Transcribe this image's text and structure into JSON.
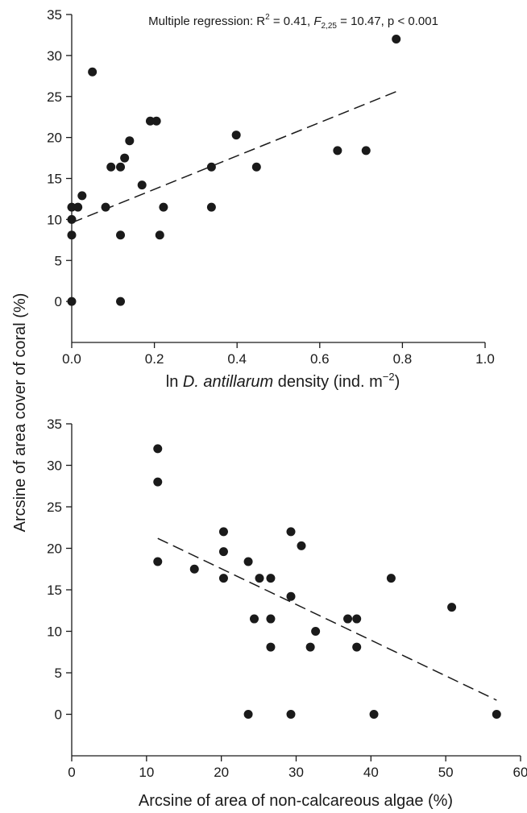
{
  "ylabel_shared": "Arcsine of area cover of coral (%)",
  "chart_data": [
    {
      "type": "scatter",
      "xlabel": {
        "prefix": "ln ",
        "italic": "D. antillarum",
        "suffix": " density (ind. m",
        "sup": "−2",
        "end": ")"
      },
      "ylabel": "Arcsine of area cover of coral (%)",
      "annotation": {
        "a": "Multiple regression: R",
        "sup": "2",
        "b": " = 0.41, ",
        "F": "F",
        "sub": "2,25",
        "c": " = 10.47, p < 0.001"
      },
      "xlim": [
        0,
        1.0
      ],
      "ylim": [
        -5,
        35
      ],
      "xticks": [
        "0.0",
        "0.2",
        "0.4",
        "0.6",
        "0.8",
        "1.0"
      ],
      "yticks": [
        "0",
        "5",
        "10",
        "15",
        "20",
        "25",
        "30",
        "35"
      ],
      "points": [
        {
          "x": 0.0,
          "y": 0.0
        },
        {
          "x": 0.0,
          "y": 8.1
        },
        {
          "x": 0.0,
          "y": 10.0
        },
        {
          "x": 0.0,
          "y": 11.5
        },
        {
          "x": 0.015,
          "y": 11.5
        },
        {
          "x": 0.025,
          "y": 12.9
        },
        {
          "x": 0.05,
          "y": 28.0
        },
        {
          "x": 0.082,
          "y": 11.5
        },
        {
          "x": 0.095,
          "y": 16.4
        },
        {
          "x": 0.118,
          "y": 16.4
        },
        {
          "x": 0.118,
          "y": 8.1
        },
        {
          "x": 0.118,
          "y": 0.0
        },
        {
          "x": 0.128,
          "y": 17.5
        },
        {
          "x": 0.14,
          "y": 19.6
        },
        {
          "x": 0.17,
          "y": 14.2
        },
        {
          "x": 0.19,
          "y": 22.0
        },
        {
          "x": 0.205,
          "y": 22.0
        },
        {
          "x": 0.213,
          "y": 8.1
        },
        {
          "x": 0.222,
          "y": 11.5
        },
        {
          "x": 0.338,
          "y": 16.4
        },
        {
          "x": 0.338,
          "y": 11.5
        },
        {
          "x": 0.398,
          "y": 20.3
        },
        {
          "x": 0.447,
          "y": 16.4
        },
        {
          "x": 0.643,
          "y": 18.4
        },
        {
          "x": 0.712,
          "y": 18.4
        },
        {
          "x": 0.785,
          "y": 32.0
        }
      ],
      "fit_line": {
        "x": [
          0.0,
          0.785
        ],
        "y": [
          9.6,
          25.6
        ]
      }
    },
    {
      "type": "scatter",
      "xlabel": "Arcsine of area of non-calcareous algae (%)",
      "ylabel": "Arcsine of area cover of coral (%)",
      "xlim": [
        0,
        60
      ],
      "ylim": [
        -5,
        35
      ],
      "xticks": [
        "0",
        "10",
        "20",
        "30",
        "40",
        "50",
        "60"
      ],
      "yticks": [
        "0",
        "5",
        "10",
        "15",
        "20",
        "25",
        "30",
        "35"
      ],
      "points": [
        {
          "x": 11.5,
          "y": 32.0
        },
        {
          "x": 11.5,
          "y": 28.0
        },
        {
          "x": 11.5,
          "y": 18.4
        },
        {
          "x": 16.4,
          "y": 17.5
        },
        {
          "x": 20.3,
          "y": 22.0
        },
        {
          "x": 20.3,
          "y": 19.6
        },
        {
          "x": 20.3,
          "y": 16.4
        },
        {
          "x": 23.6,
          "y": 18.4
        },
        {
          "x": 23.6,
          "y": 0.0
        },
        {
          "x": 24.4,
          "y": 11.5
        },
        {
          "x": 25.1,
          "y": 16.4
        },
        {
          "x": 26.6,
          "y": 16.4
        },
        {
          "x": 26.6,
          "y": 11.5
        },
        {
          "x": 26.6,
          "y": 8.1
        },
        {
          "x": 29.3,
          "y": 22.0
        },
        {
          "x": 29.3,
          "y": 14.2
        },
        {
          "x": 29.3,
          "y": 0.0
        },
        {
          "x": 30.7,
          "y": 20.3
        },
        {
          "x": 31.9,
          "y": 8.1
        },
        {
          "x": 32.6,
          "y": 10.0
        },
        {
          "x": 36.9,
          "y": 11.5
        },
        {
          "x": 38.1,
          "y": 11.5
        },
        {
          "x": 38.1,
          "y": 8.1
        },
        {
          "x": 40.4,
          "y": 0.0
        },
        {
          "x": 42.7,
          "y": 16.4
        },
        {
          "x": 50.8,
          "y": 12.9
        },
        {
          "x": 56.8,
          "y": 0.0
        }
      ],
      "fit_line": {
        "x": [
          11.5,
          56.8
        ],
        "y": [
          21.2,
          1.7
        ]
      }
    }
  ]
}
